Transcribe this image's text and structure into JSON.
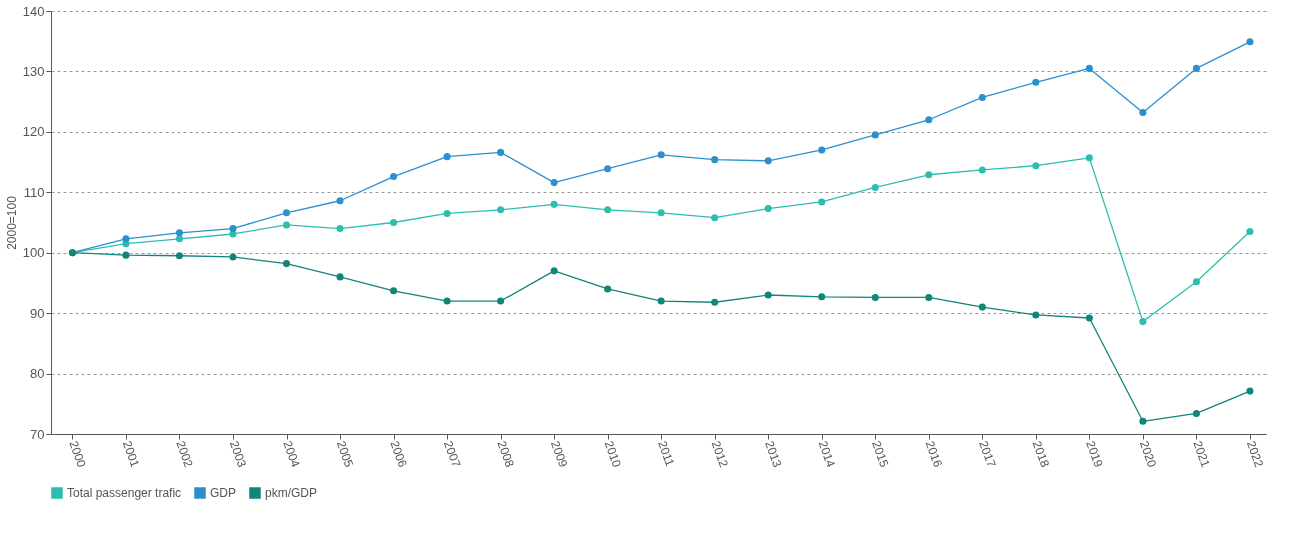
{
  "chart_data": {
    "type": "line",
    "ylabel": "2000=100",
    "categories": [
      "2000",
      "2001",
      "2002",
      "2003",
      "2004",
      "2005",
      "2006",
      "2007",
      "2008",
      "2009",
      "2010",
      "2011",
      "2012",
      "2013",
      "2014",
      "2015",
      "2016",
      "2017",
      "2018",
      "2019",
      "2020",
      "2021",
      "2022"
    ],
    "series": [
      {
        "name": "Total passenger trafic",
        "color": "#2dbdb0",
        "values": [
          100,
          101.5,
          102.3,
          103.1,
          104.6,
          104,
          105,
          106.5,
          107.1,
          108,
          107.1,
          106.6,
          105.8,
          107.3,
          108.4,
          110.8,
          112.9,
          113.7,
          114.4,
          115.7,
          88.6,
          95.2,
          103.5
        ]
      },
      {
        "name": "GDP",
        "color": "#2b8fd0",
        "values": [
          100,
          102.3,
          103.3,
          104,
          106.6,
          108.6,
          112.6,
          115.9,
          116.6,
          111.6,
          113.9,
          116.2,
          115.4,
          115.2,
          117,
          119.5,
          122,
          125.7,
          128.2,
          130.5,
          123.2,
          130.5,
          134.9
        ]
      },
      {
        "name": "pkm/GDP",
        "color": "#11857a",
        "values": [
          100,
          99.6,
          99.5,
          99.3,
          98.2,
          96,
          93.7,
          92,
          92,
          97,
          94,
          92,
          91.8,
          93,
          92.7,
          92.6,
          92.6,
          91,
          89.7,
          89.2,
          72.1,
          73.4,
          77.1
        ]
      }
    ],
    "ylim": [
      70,
      140
    ],
    "yticks": [
      70,
      80,
      90,
      100,
      110,
      120,
      130,
      140
    ],
    "grid": "y",
    "legend": "bottom",
    "marker": "circle",
    "line_style": "solid"
  }
}
